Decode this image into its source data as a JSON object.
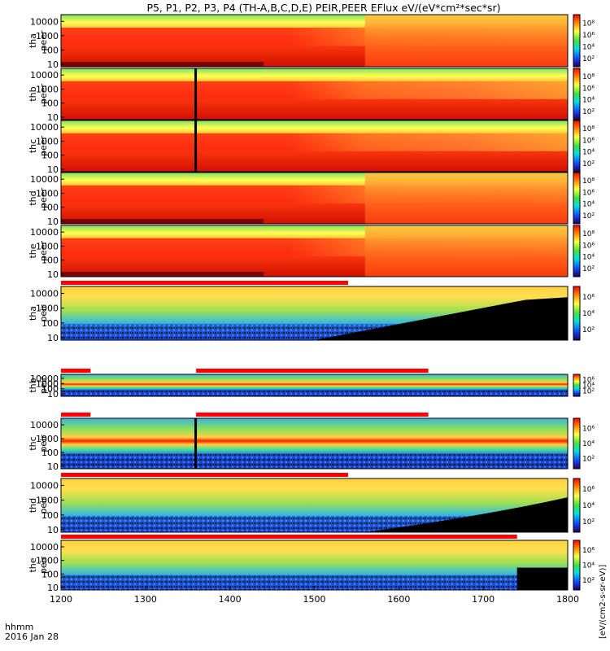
{
  "chart_data": {
    "type": "heatmap",
    "title": "P5, P1, P2, P3, P4 (TH-A,B,C,D,E) PEIR,PEER EFlux eV/(eV*cm²*sec*sr)",
    "x_axis": {
      "range": [
        1200,
        1800
      ],
      "ticks": [
        "1200",
        "1300",
        "1400",
        "1500",
        "1600",
        "1700",
        "1800"
      ],
      "label_line1": "hhmm",
      "label_line2": "2016 Jan 28"
    },
    "y_ticks": [
      "10",
      "100",
      "1000",
      "10000"
    ],
    "y_scale": "log",
    "colorbar": {
      "scale": "log",
      "tick_labels_electron": [
        "10²",
        "10⁴",
        "10⁶",
        "10⁸"
      ],
      "tick_labels_ion": [
        "10²",
        "10⁴",
        "10⁶"
      ],
      "label": "[eV/(cm2-s-sr-eV)]",
      "label_title": "eV/(cm²*s*sr*eV)"
    },
    "panels": [
      {
        "probe": "tha",
        "species": "peer",
        "label1": "tha",
        "label2": "peer",
        "colorbar": "tick_labels_electron"
      },
      {
        "probe": "thb",
        "species": "peer",
        "label1": "thb",
        "label2": "peer",
        "colorbar": "tick_labels_electron"
      },
      {
        "probe": "thc",
        "species": "peer",
        "label1": "thc",
        "label2": "peer",
        "colorbar": "tick_labels_electron"
      },
      {
        "probe": "thd",
        "species": "peer",
        "label1": "thd",
        "label2": "peer",
        "colorbar": "tick_labels_electron"
      },
      {
        "probe": "the",
        "species": "peer",
        "label1": "the",
        "label2": "peer",
        "colorbar": "tick_labels_electron"
      },
      {
        "probe": "tha",
        "species": "peir",
        "label1": "tha",
        "label2": "peir",
        "colorbar": "tick_labels_ion"
      },
      {
        "probe": "thb",
        "species": "peir",
        "label1": "thb",
        "label2": "peir",
        "colorbar": "tick_labels_ion"
      },
      {
        "probe": "thc",
        "species": "peir",
        "label1": "thc",
        "label2": "peir",
        "colorbar": "tick_labels_ion"
      },
      {
        "probe": "thd",
        "species": "peir",
        "label1": "thd",
        "label2": "peir",
        "colorbar": "tick_labels_ion"
      },
      {
        "probe": "the",
        "species": "peir",
        "label1": "the",
        "label2": "peir",
        "colorbar": "tick_labels_ion"
      }
    ],
    "colors": {
      "bg": "#ff3a1a",
      "low": "#ffd030",
      "green": "#78e060",
      "flag_red": "#ff0000",
      "flag_white": "#ffffff"
    }
  }
}
